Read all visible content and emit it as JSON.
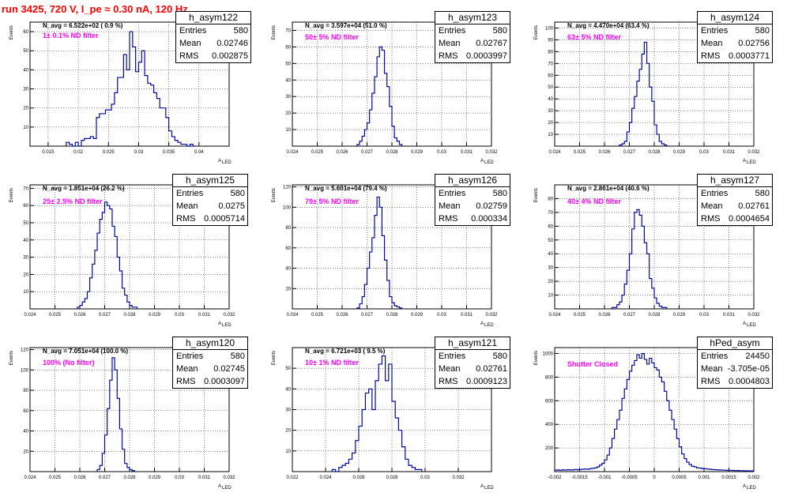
{
  "page_title": "run 3425,   720 V, I_pe ≈ 0.30 nA, 120 Hz",
  "common": {
    "ylabel": "Events",
    "xlabel": "A",
    "xlabel_sub": "LED",
    "stats_labels": {
      "entries": "Entries",
      "mean": "Mean",
      "rms": "RMS"
    },
    "hist_color": "#000a9c",
    "label_color": "#ff00ff",
    "title_color": "#ff0000"
  },
  "chart_data": [
    {
      "type": "histogram",
      "name": "h_asym122",
      "navg": "N_avg = 6.522e+02 ( 0.9 %)",
      "filter": "1± 0.1% ND filter",
      "stats": {
        "entries": "580",
        "mean": "0.02746",
        "rms": "0.002875"
      },
      "xlim": [
        0.012,
        0.045
      ],
      "ylim": [
        0,
        65
      ],
      "xticks": [
        0.015,
        0.02,
        0.025,
        0.03,
        0.035,
        0.04
      ],
      "xtick_labels": [
        "0.015",
        "0.02",
        "0.025",
        "0.03",
        "0.035",
        "0.04"
      ],
      "yticks": [
        10,
        20,
        30,
        40,
        50,
        60
      ],
      "ytick_labels": [
        "10",
        "20",
        "30",
        "40",
        "50",
        "60"
      ],
      "bins": {
        "start": 0.018,
        "width": 0.0005,
        "counts": [
          2,
          1,
          0,
          2,
          0,
          3,
          4,
          4,
          5,
          4,
          15,
          17,
          17,
          19,
          19,
          22,
          28,
          36,
          36,
          48,
          40,
          60,
          52,
          39,
          44,
          50,
          37,
          33,
          32,
          28,
          25,
          20,
          20,
          15,
          8,
          5,
          3,
          2,
          1,
          1,
          0,
          1,
          0
        ]
      }
    },
    {
      "type": "histogram",
      "name": "h_asym123",
      "navg": "N_avg = 3.597e+04 (51.0 %)",
      "filter": "50± 5% ND filter",
      "stats": {
        "entries": "580",
        "mean": "0.02767",
        "rms": "0.0003997"
      },
      "xlim": [
        0.024,
        0.032
      ],
      "ylim": [
        0,
        75
      ],
      "xticks": [
        0.024,
        0.025,
        0.026,
        0.027,
        0.028,
        0.029,
        0.03,
        0.031,
        0.032
      ],
      "xtick_labels": [
        "0.024",
        "0.025",
        "0.026",
        "0.027",
        "0.028",
        "0.029",
        "0.03",
        "0.031",
        "0.032"
      ],
      "yticks": [
        10,
        20,
        30,
        40,
        50,
        60,
        70
      ],
      "ytick_labels": [
        "10",
        "20",
        "30",
        "40",
        "50",
        "60",
        "70"
      ],
      "bins": {
        "start": 0.0266,
        "width": 0.0001,
        "counts": [
          1,
          3,
          6,
          10,
          14,
          22,
          32,
          42,
          54,
          60,
          58,
          44,
          36,
          24,
          12,
          5,
          3,
          1
        ]
      }
    },
    {
      "type": "histogram",
      "name": "h_asym124",
      "navg": "N_avg = 4.470e+04 (63.4 %)",
      "filter": "63± 5% ND filter",
      "stats": {
        "entries": "580",
        "mean": "0.02756",
        "rms": "0.0003771"
      },
      "xlim": [
        0.024,
        0.032
      ],
      "ylim": [
        0,
        105
      ],
      "xticks": [
        0.024,
        0.025,
        0.026,
        0.027,
        0.028,
        0.029,
        0.03,
        0.031,
        0.032
      ],
      "xtick_labels": [
        "0.024",
        "0.025",
        "0.026",
        "0.027",
        "0.028",
        "0.029",
        "0.03",
        "0.031",
        "0.032"
      ],
      "yticks": [
        10,
        20,
        30,
        40,
        50,
        60,
        70,
        80,
        90,
        100
      ],
      "ytick_labels": [
        "10",
        "20",
        "30",
        "40",
        "50",
        "60",
        "70",
        "80",
        "90",
        "100"
      ],
      "bins": {
        "start": 0.0266,
        "width": 0.0001,
        "counts": [
          1,
          2,
          4,
          12,
          20,
          32,
          42,
          55,
          65,
          78,
          88,
          70,
          50,
          38,
          18,
          10,
          4,
          2,
          1
        ]
      }
    },
    {
      "type": "histogram",
      "name": "h_asym125",
      "navg": "N_avg = 1.851e+04 (26.2 %)",
      "filter": "25± 2.5% ND filter",
      "stats": {
        "entries": "580",
        "mean": "0.0275",
        "rms": "0.0005714"
      },
      "xlim": [
        0.024,
        0.032
      ],
      "ylim": [
        0,
        72
      ],
      "xticks": [
        0.024,
        0.025,
        0.026,
        0.027,
        0.028,
        0.029,
        0.03,
        0.031,
        0.032
      ],
      "xtick_labels": [
        "0.024",
        "0.025",
        "0.026",
        "0.027",
        "0.028",
        "0.029",
        "0.03",
        "0.031",
        "0.032"
      ],
      "yticks": [
        10,
        20,
        30,
        40,
        50,
        60,
        70
      ],
      "ytick_labels": [
        "10",
        "20",
        "30",
        "40",
        "50",
        "60",
        "70"
      ],
      "bins": {
        "start": 0.0259,
        "width": 0.0001,
        "counts": [
          1,
          2,
          4,
          6,
          10,
          18,
          26,
          34,
          44,
          52,
          56,
          62,
          60,
          58,
          48,
          42,
          30,
          22,
          12,
          8,
          4,
          2,
          1,
          1
        ]
      }
    },
    {
      "type": "histogram",
      "name": "h_asym126",
      "navg": "N_avg = 5.601e+04 (79.4 %)",
      "filter": "79± 5% ND filter",
      "stats": {
        "entries": "580",
        "mean": "0.02759",
        "rms": "0.000334"
      },
      "xlim": [
        0.024,
        0.032
      ],
      "ylim": [
        0,
        122
      ],
      "xticks": [
        0.024,
        0.025,
        0.026,
        0.027,
        0.028,
        0.029,
        0.03,
        0.031,
        0.032
      ],
      "xtick_labels": [
        "0.024",
        "0.025",
        "0.026",
        "0.027",
        "0.028",
        "0.029",
        "0.03",
        "0.031",
        "0.032"
      ],
      "yticks": [
        20,
        40,
        60,
        80,
        100,
        120
      ],
      "ytick_labels": [
        "20",
        "40",
        "60",
        "80",
        "100",
        "120"
      ],
      "bins": {
        "start": 0.0266,
        "width": 0.0001,
        "counts": [
          1,
          5,
          12,
          24,
          40,
          56,
          70,
          92,
          110,
          100,
          72,
          48,
          28,
          12,
          6,
          3,
          2,
          1
        ]
      }
    },
    {
      "type": "histogram",
      "name": "h_asym127",
      "navg": "N_avg = 2.861e+04 (40.6 %)",
      "filter": "40± 4% ND filter",
      "stats": {
        "entries": "580",
        "mean": "0.02761",
        "rms": "0.0004654"
      },
      "xlim": [
        0.024,
        0.032
      ],
      "ylim": [
        0,
        90
      ],
      "xticks": [
        0.024,
        0.025,
        0.026,
        0.027,
        0.028,
        0.029,
        0.03,
        0.031,
        0.032
      ],
      "xtick_labels": [
        "0.024",
        "0.025",
        "0.026",
        "0.027",
        "0.028",
        "0.029",
        "0.03",
        "0.031",
        "0.032"
      ],
      "yticks": [
        10,
        20,
        30,
        40,
        50,
        60,
        70,
        80
      ],
      "ytick_labels": [
        "10",
        "20",
        "30",
        "40",
        "50",
        "60",
        "70",
        "80"
      ],
      "bins": {
        "start": 0.0263,
        "width": 0.0001,
        "counts": [
          1,
          1,
          3,
          5,
          10,
          18,
          28,
          40,
          58,
          70,
          72,
          68,
          60,
          48,
          40,
          22,
          15,
          8,
          4,
          2,
          1,
          1
        ]
      }
    },
    {
      "type": "histogram",
      "name": "h_asym120",
      "navg": "N_avg = 7.051e+04 (100.0 %)",
      "filter": "100% (No filter)",
      "stats": {
        "entries": "580",
        "mean": "0.02745",
        "rms": "0.0003097"
      },
      "xlim": [
        0.024,
        0.032
      ],
      "ylim": [
        0,
        122
      ],
      "xticks": [
        0.024,
        0.025,
        0.026,
        0.027,
        0.028,
        0.029,
        0.03,
        0.031,
        0.032
      ],
      "xtick_labels": [
        "0.024",
        "0.025",
        "0.026",
        "0.027",
        "0.028",
        "0.029",
        "0.03",
        "0.031",
        "0.032"
      ],
      "yticks": [
        20,
        40,
        60,
        80,
        100,
        120
      ],
      "ytick_labels": [
        "20",
        "40",
        "60",
        "80",
        "100",
        "120"
      ],
      "bins": {
        "start": 0.0267,
        "width": 0.0001,
        "counts": [
          2,
          6,
          18,
          36,
          62,
          90,
          112,
          100,
          72,
          42,
          22,
          8,
          4,
          2,
          1
        ]
      }
    },
    {
      "type": "histogram",
      "name": "h_asym121",
      "navg": "N_avg = 6.721e+03 ( 9.5 %)",
      "filter": "10± 1% ND filter",
      "stats": {
        "entries": "580",
        "mean": "0.02761",
        "rms": "0.0009123"
      },
      "xlim": [
        0.022,
        0.034
      ],
      "ylim": [
        0,
        60
      ],
      "xticks": [
        0.022,
        0.024,
        0.026,
        0.028,
        0.03,
        0.032
      ],
      "xtick_labels": [
        "0.022",
        "0.024",
        "0.026",
        "0.028",
        "0.03",
        "0.032"
      ],
      "yticks": [
        10,
        20,
        30,
        40,
        50
      ],
      "ytick_labels": [
        "10",
        "20",
        "30",
        "40",
        "50"
      ],
      "bins": {
        "start": 0.0244,
        "width": 0.0002,
        "counts": [
          1,
          0,
          2,
          3,
          4,
          6,
          9,
          15,
          22,
          30,
          38,
          40,
          30,
          44,
          52,
          56,
          44,
          52,
          34,
          26,
          20,
          12,
          6,
          3,
          2,
          1,
          1
        ]
      }
    },
    {
      "type": "histogram",
      "name": "hPed_asym",
      "filter": "Shutter Closed",
      "stats": {
        "entries": "24450",
        "mean": "-3.705e-05",
        "rms": "0.0004803"
      },
      "xlim": [
        -0.002,
        0.002
      ],
      "ylim": [
        0,
        1050
      ],
      "xticks": [
        -0.002,
        -0.0015,
        -0.001,
        -0.0005,
        0,
        0.0005,
        0.001,
        0.0015,
        0.002
      ],
      "xtick_labels": [
        "-0.002",
        "-0.0015",
        "-0.001",
        "-0.0005",
        "0",
        "0.0005",
        "0.001",
        "0.0015",
        "0.002"
      ],
      "yticks": [
        200,
        400,
        600,
        800,
        1000
      ],
      "ytick_labels": [
        "200",
        "400",
        "600",
        "800",
        "1000"
      ],
      "bins": {
        "start": -0.002,
        "width": 5e-05,
        "counts": [
          12,
          14,
          12,
          15,
          13,
          16,
          14,
          15,
          18,
          16,
          18,
          20,
          22,
          20,
          25,
          28,
          32,
          40,
          55,
          70,
          100,
          140,
          200,
          280,
          360,
          440,
          520,
          620,
          700,
          780,
          850,
          900,
          940,
          990,
          960,
          1000,
          950,
          910,
          960,
          920,
          880,
          860,
          800,
          760,
          680,
          600,
          520,
          440,
          360,
          280,
          210,
          150,
          110,
          80,
          60,
          45,
          40,
          32,
          30,
          26,
          24,
          22,
          20,
          18,
          16,
          15,
          14,
          13,
          12,
          11,
          10,
          10,
          9,
          9,
          8,
          8,
          7,
          7,
          6,
          6
        ]
      }
    }
  ]
}
